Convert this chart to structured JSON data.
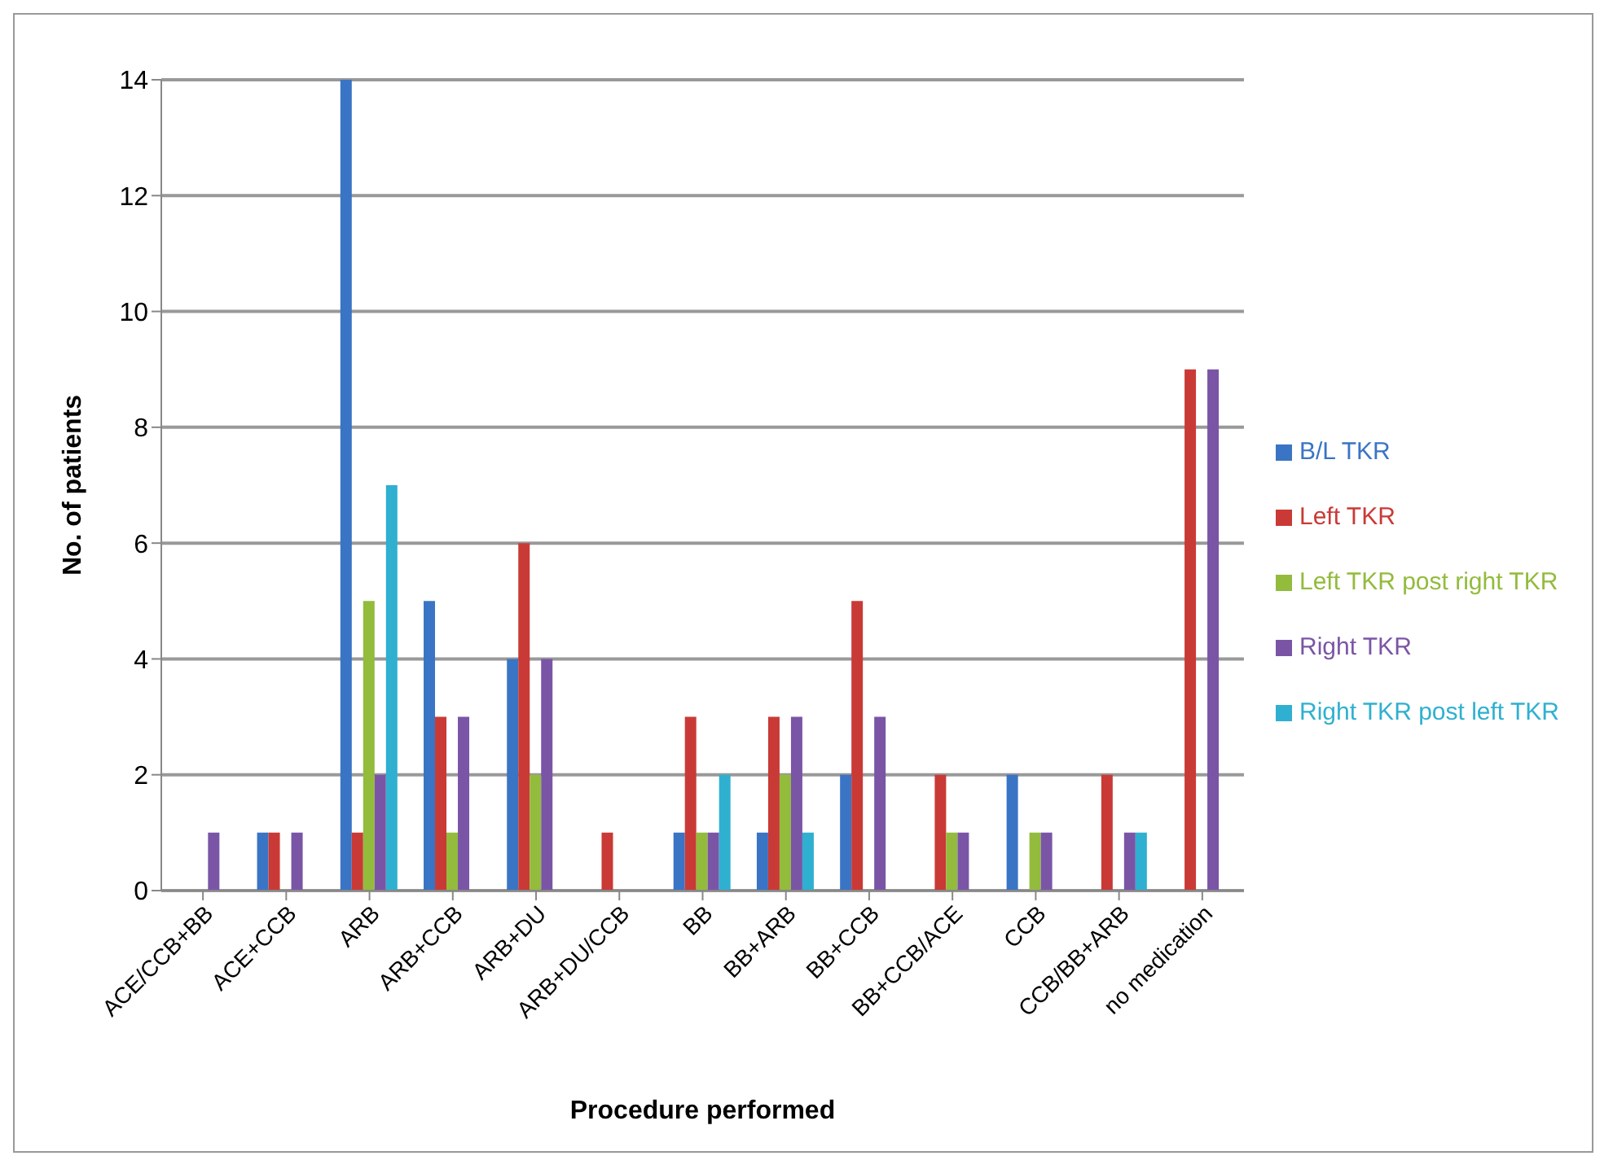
{
  "chart_data": {
    "type": "bar",
    "xlabel": "Procedure performed",
    "ylabel": "No. of  patients",
    "categories": [
      "ACE/CCB+BB",
      "ACE+CCB",
      "ARB",
      "ARB+CCB",
      "ARB+DU",
      "ARB+DU/CCB",
      "BB",
      "BB+ARB",
      "BB+CCB",
      "BB+CCB/ACE",
      "CCB",
      "CCB/BB+ARB",
      "no medication"
    ],
    "series": [
      {
        "name": "B/L TKR",
        "color": "#3a74c4",
        "values": [
          0,
          1,
          14,
          5,
          4,
          0,
          1,
          1,
          2,
          0,
          2,
          0,
          0
        ]
      },
      {
        "name": "Left TKR",
        "color": "#c93a36",
        "values": [
          0,
          1,
          1,
          3,
          6,
          1,
          3,
          3,
          5,
          2,
          0,
          2,
          9
        ]
      },
      {
        "name": "Left TKR post right TKR",
        "color": "#93bb3c",
        "values": [
          0,
          0,
          5,
          1,
          2,
          0,
          1,
          2,
          0,
          1,
          1,
          0,
          0
        ]
      },
      {
        "name": "Right TKR",
        "color": "#7a55a6",
        "values": [
          1,
          1,
          2,
          3,
          4,
          0,
          1,
          3,
          3,
          1,
          1,
          1,
          9
        ]
      },
      {
        "name": "Right TKR post left TKR",
        "color": "#2fb0d0",
        "values": [
          0,
          0,
          7,
          0,
          0,
          0,
          2,
          1,
          0,
          0,
          0,
          1,
          0
        ]
      }
    ],
    "ylim": [
      0,
      14
    ],
    "yticks": [
      0,
      2,
      4,
      6,
      8,
      10,
      12,
      14
    ],
    "grid": "y",
    "legend": "right"
  }
}
